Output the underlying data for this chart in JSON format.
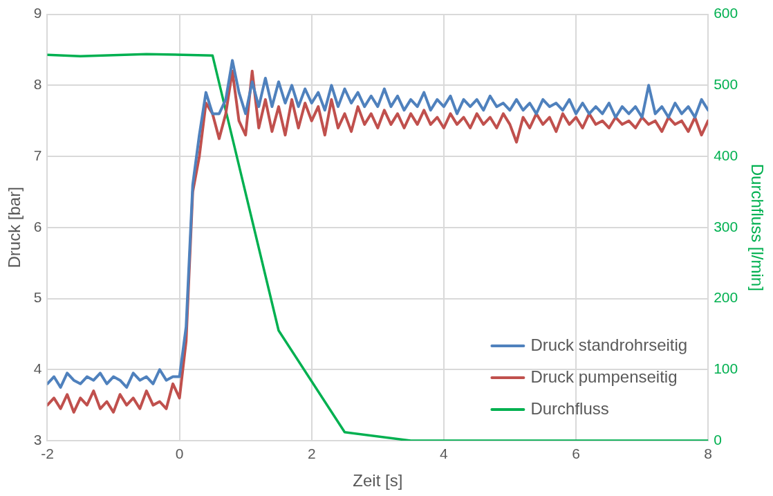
{
  "chart_data": {
    "type": "line",
    "xlabel": "Zeit [s]",
    "ylabel": "Druck [bar]",
    "y2label": "Durchfluss [l/min]",
    "xlim": [
      -2,
      8
    ],
    "xticks": [
      -2,
      0,
      2,
      4,
      6,
      8
    ],
    "ylim": [
      3,
      9
    ],
    "yticks": [
      3,
      4,
      5,
      6,
      7,
      8,
      9
    ],
    "y2lim": [
      0,
      600
    ],
    "y2ticks": [
      0,
      100,
      200,
      300,
      400,
      500,
      600
    ],
    "grid": true,
    "legend": "bottom right",
    "marker": "none",
    "line_style": "solid",
    "x": [
      -2,
      -1.9,
      -1.8,
      -1.7,
      -1.6,
      -1.5,
      -1.4,
      -1.3,
      -1.2,
      -1.1,
      -1,
      -0.9,
      -0.8,
      -0.7,
      -0.6,
      -0.5,
      -0.4,
      -0.3,
      -0.2,
      -0.1,
      0,
      0.1,
      0.2,
      0.3,
      0.4,
      0.5,
      0.6,
      0.7,
      0.8,
      0.9,
      1,
      1.1,
      1.2,
      1.3,
      1.4,
      1.5,
      1.6,
      1.7,
      1.8,
      1.9,
      2,
      2.1,
      2.2,
      2.3,
      2.4,
      2.5,
      2.6,
      2.7,
      2.8,
      2.9,
      3,
      3.1,
      3.2,
      3.3,
      3.4,
      3.5,
      3.6,
      3.7,
      3.8,
      3.9,
      4,
      4.1,
      4.2,
      4.3,
      4.4,
      4.5,
      4.6,
      4.7,
      4.8,
      4.9,
      5,
      5.1,
      5.2,
      5.3,
      5.4,
      5.5,
      5.6,
      5.7,
      5.8,
      5.9,
      6,
      6.1,
      6.2,
      6.3,
      6.4,
      6.5,
      6.6,
      6.7,
      6.8,
      6.9,
      7,
      7.1,
      7.2,
      7.3,
      7.4,
      7.5,
      7.6,
      7.7,
      7.8,
      7.9,
      8
    ],
    "series": [
      {
        "name": "Druck standrohrseitig",
        "color": "#4f81bd",
        "values": [
          3.8,
          3.9,
          3.75,
          3.95,
          3.85,
          3.8,
          3.9,
          3.85,
          3.95,
          3.8,
          3.9,
          3.85,
          3.75,
          3.95,
          3.85,
          3.9,
          3.8,
          4.0,
          3.85,
          3.9,
          3.9,
          4.6,
          6.6,
          7.3,
          7.9,
          7.6,
          7.6,
          7.8,
          8.35,
          7.9,
          7.6,
          8.05,
          7.7,
          8.1,
          7.7,
          8.05,
          7.75,
          8.0,
          7.7,
          7.95,
          7.75,
          7.9,
          7.65,
          8.0,
          7.7,
          7.95,
          7.75,
          7.9,
          7.7,
          7.85,
          7.7,
          7.95,
          7.7,
          7.85,
          7.65,
          7.8,
          7.7,
          7.9,
          7.65,
          7.8,
          7.7,
          7.85,
          7.6,
          7.8,
          7.7,
          7.8,
          7.65,
          7.85,
          7.7,
          7.75,
          7.65,
          7.8,
          7.65,
          7.75,
          7.6,
          7.8,
          7.7,
          7.75,
          7.65,
          7.8,
          7.6,
          7.75,
          7.6,
          7.7,
          7.6,
          7.75,
          7.55,
          7.7,
          7.6,
          7.7,
          7.55,
          8.0,
          7.6,
          7.7,
          7.55,
          7.75,
          7.6,
          7.7,
          7.55,
          7.8,
          7.65
        ]
      },
      {
        "name": "Druck pumpenseitig",
        "color": "#c0504d",
        "values": [
          3.5,
          3.6,
          3.45,
          3.65,
          3.4,
          3.6,
          3.5,
          3.7,
          3.45,
          3.55,
          3.4,
          3.65,
          3.5,
          3.6,
          3.45,
          3.7,
          3.5,
          3.55,
          3.45,
          3.8,
          3.6,
          4.4,
          6.5,
          7.0,
          7.75,
          7.6,
          7.25,
          7.6,
          8.2,
          7.5,
          7.3,
          8.2,
          7.4,
          7.8,
          7.35,
          7.7,
          7.3,
          7.8,
          7.4,
          7.75,
          7.5,
          7.7,
          7.3,
          7.8,
          7.4,
          7.6,
          7.35,
          7.7,
          7.45,
          7.6,
          7.4,
          7.65,
          7.45,
          7.6,
          7.4,
          7.6,
          7.45,
          7.65,
          7.45,
          7.55,
          7.4,
          7.6,
          7.45,
          7.55,
          7.4,
          7.6,
          7.45,
          7.55,
          7.4,
          7.6,
          7.45,
          7.2,
          7.55,
          7.4,
          7.6,
          7.45,
          7.55,
          7.35,
          7.6,
          7.45,
          7.55,
          7.4,
          7.6,
          7.45,
          7.5,
          7.4,
          7.55,
          7.45,
          7.5,
          7.4,
          7.55,
          7.45,
          7.5,
          7.35,
          7.55,
          7.45,
          7.5,
          7.35,
          7.55,
          7.3,
          7.5
        ]
      },
      {
        "name": "Durchfluss",
        "color": "#00b050",
        "axis": "y2",
        "x": [
          -2,
          -1.5,
          -0.5,
          0.5,
          1.5,
          2.5,
          3.5,
          8
        ],
        "values": [
          543,
          541,
          544,
          542,
          155,
          12,
          0,
          0
        ]
      }
    ]
  }
}
